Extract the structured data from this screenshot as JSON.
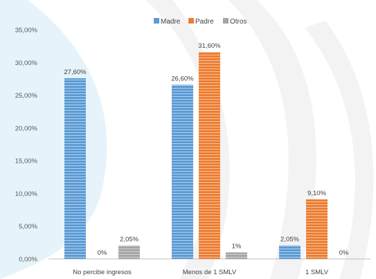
{
  "chart_data": {
    "type": "bar",
    "categories": [
      "No percibe ingresos",
      "Menos de 1 SMLV",
      "1 SMLV"
    ],
    "series": [
      {
        "name": "Madre",
        "values": [
          27.6,
          26.6,
          2.05
        ],
        "labels": [
          "27,60%",
          "26,60%",
          "2,05%"
        ],
        "color": "#5b9bd5"
      },
      {
        "name": "Padre",
        "values": [
          0,
          31.6,
          9.1
        ],
        "labels": [
          "0%",
          "31,60%",
          "9,10%"
        ],
        "color": "#ed7d31"
      },
      {
        "name": "Otros",
        "values": [
          2.05,
          1,
          0
        ],
        "labels": [
          "2,05%",
          "1%",
          "0%"
        ],
        "color": "#a5a5a5"
      }
    ],
    "ylim": [
      0,
      35
    ],
    "y_ticks": [
      0,
      5,
      10,
      15,
      20,
      25,
      30,
      35
    ],
    "y_tick_labels": [
      "0,00%",
      "5,00%",
      "10,00%",
      "15,00%",
      "20,00%",
      "25,00%",
      "30,00%",
      "35,00%"
    ],
    "legend_position": "top-center",
    "grid": false,
    "title": "",
    "xlabel": "",
    "ylabel": ""
  }
}
